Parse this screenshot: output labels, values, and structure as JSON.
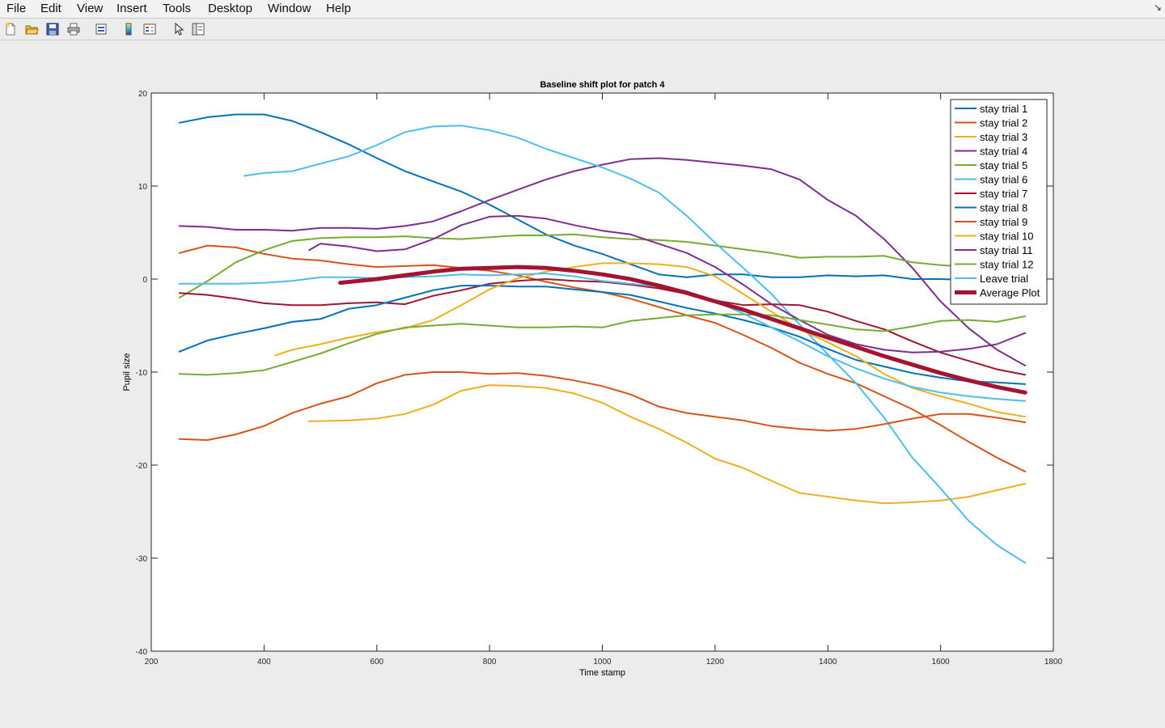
{
  "menubar": {
    "items": [
      "File",
      "Edit",
      "View",
      "Insert",
      "Tools",
      "Desktop",
      "Window",
      "Help"
    ]
  },
  "toolbar": {
    "icons": [
      "new-figure-icon",
      "open-file-icon",
      "save-icon",
      "print-icon",
      "print-preview-icon",
      "colorbar-icon",
      "legend-icon",
      "pointer-icon",
      "property-inspector-icon"
    ]
  },
  "chart_data": {
    "type": "line",
    "title": "Baseline shift plot for patch 4",
    "xlabel": "Time stamp",
    "ylabel": "Pupil size",
    "xlim": [
      200,
      1800
    ],
    "ylim": [
      -40,
      20
    ],
    "xticks": [
      200,
      400,
      600,
      800,
      1000,
      1200,
      1400,
      1600,
      1800
    ],
    "yticks": [
      -40,
      -30,
      -20,
      -10,
      0,
      10,
      20
    ],
    "grid": false,
    "legend_position": "top-right",
    "series": [
      {
        "name": "stay trial 1",
        "color": "#0072BD",
        "width": 2,
        "x": [
          250,
          300,
          350,
          400,
          450,
          500,
          550,
          600,
          650,
          700,
          750,
          800,
          850,
          900,
          950,
          1000,
          1050,
          1100,
          1150,
          1200,
          1250,
          1300,
          1350,
          1400,
          1450,
          1500,
          1550,
          1600,
          1650,
          1700,
          1750
        ],
        "y": [
          16.8,
          17.4,
          17.7,
          17.7,
          17.0,
          15.8,
          14.5,
          13.0,
          11.6,
          10.5,
          9.4,
          8.0,
          6.4,
          4.8,
          3.6,
          2.7,
          1.6,
          0.5,
          0.2,
          0.5,
          0.5,
          0.2,
          0.2,
          0.4,
          0.3,
          0.4,
          0.0,
          0.0,
          -0.1,
          0.1,
          0.4
        ]
      },
      {
        "name": "stay trial 2",
        "color": "#D95319",
        "width": 2,
        "x": [
          250,
          300,
          350,
          400,
          450,
          500,
          550,
          600,
          650,
          700,
          750,
          800,
          850,
          900,
          950,
          1000,
          1050,
          1100,
          1150,
          1200,
          1250,
          1300,
          1350,
          1400,
          1450,
          1500,
          1550,
          1600,
          1650,
          1700,
          1750
        ],
        "y": [
          2.8,
          3.6,
          3.4,
          2.7,
          2.2,
          2.0,
          1.6,
          1.3,
          1.4,
          1.5,
          1.2,
          0.9,
          0.4,
          -0.3,
          -0.9,
          -1.4,
          -2.1,
          -3.0,
          -3.9,
          -4.7,
          -6.0,
          -7.4,
          -9.0,
          -10.2,
          -11.2,
          -12.6,
          -14.0,
          -15.7,
          -17.5,
          -19.2,
          -20.7
        ]
      },
      {
        "name": "stay trial 3",
        "color": "#EDB120",
        "width": 2,
        "x": [
          480,
          550,
          600,
          650,
          700,
          750,
          800,
          850,
          900,
          950,
          1000,
          1050,
          1100,
          1150,
          1200,
          1250,
          1300,
          1350,
          1400,
          1450,
          1500,
          1550,
          1600,
          1650,
          1700,
          1750
        ],
        "y": [
          -15.3,
          -15.2,
          -15.0,
          -14.5,
          -13.5,
          -12.0,
          -11.4,
          -11.5,
          -11.7,
          -12.3,
          -13.3,
          -14.8,
          -16.1,
          -17.6,
          -19.3,
          -20.3,
          -21.7,
          -23.0,
          -23.4,
          -23.8,
          -24.1,
          -24.0,
          -23.8,
          -23.4,
          -22.7,
          -22.0
        ]
      },
      {
        "name": "stay trial 4",
        "color": "#7E2F8E",
        "width": 2,
        "x": [
          250,
          300,
          350,
          400,
          450,
          500,
          550,
          600,
          650,
          700,
          750,
          800,
          850,
          900,
          950,
          1000,
          1050,
          1100,
          1150,
          1200,
          1250,
          1300,
          1350,
          1400,
          1450,
          1500,
          1550,
          1600,
          1650,
          1700,
          1750
        ],
        "y": [
          5.7,
          5.6,
          5.3,
          5.3,
          5.2,
          5.5,
          5.5,
          5.4,
          5.7,
          6.2,
          7.3,
          8.5,
          9.6,
          10.7,
          11.6,
          12.3,
          12.9,
          13.0,
          12.8,
          12.5,
          12.2,
          11.8,
          10.7,
          8.5,
          6.8,
          4.3,
          1.2,
          -2.4,
          -5.3,
          -7.6,
          -9.3
        ]
      },
      {
        "name": "stay trial 5",
        "color": "#77AC30",
        "width": 2,
        "x": [
          250,
          300,
          350,
          400,
          450,
          500,
          550,
          600,
          650,
          700,
          750,
          800,
          850,
          900,
          950,
          1000,
          1050,
          1100,
          1150,
          1200,
          1250,
          1300,
          1350,
          1400,
          1450,
          1500,
          1550,
          1600,
          1650,
          1700,
          1750
        ],
        "y": [
          -2.0,
          -0.2,
          1.8,
          3.1,
          4.1,
          4.4,
          4.5,
          4.5,
          4.6,
          4.4,
          4.3,
          4.5,
          4.7,
          4.7,
          4.8,
          4.5,
          4.3,
          4.2,
          4.0,
          3.6,
          3.2,
          2.8,
          2.3,
          2.4,
          2.4,
          2.5,
          1.8,
          1.5,
          1.3,
          1.2,
          1.5
        ]
      },
      {
        "name": "stay trial 6",
        "color": "#4DBEEE",
        "width": 2,
        "x": [
          365,
          400,
          450,
          500,
          550,
          600,
          650,
          700,
          750,
          800,
          850,
          900,
          950,
          1000,
          1050,
          1100,
          1150,
          1200,
          1250,
          1300,
          1350,
          1400,
          1450,
          1500,
          1550,
          1600,
          1650,
          1700,
          1750
        ],
        "y": [
          11.1,
          11.4,
          11.6,
          12.4,
          13.2,
          14.4,
          15.8,
          16.4,
          16.5,
          16.0,
          15.2,
          14.0,
          13.0,
          12.0,
          10.8,
          9.3,
          6.8,
          3.9,
          1.2,
          -1.6,
          -4.9,
          -8.1,
          -11.2,
          -14.9,
          -19.2,
          -22.5,
          -26.0,
          -28.6,
          -30.5
        ]
      },
      {
        "name": "stay trial 7",
        "color": "#A2142F",
        "width": 2,
        "x": [
          250,
          300,
          350,
          400,
          450,
          500,
          550,
          600,
          650,
          700,
          750,
          800,
          850,
          900,
          950,
          1000,
          1050,
          1100,
          1150,
          1200,
          1250,
          1300,
          1350,
          1400,
          1450,
          1500,
          1550,
          1600,
          1650,
          1700,
          1750
        ],
        "y": [
          -1.5,
          -1.7,
          -2.1,
          -2.6,
          -2.8,
          -2.8,
          -2.6,
          -2.5,
          -2.7,
          -1.8,
          -1.2,
          -0.5,
          -0.2,
          0.0,
          -0.2,
          -0.3,
          -0.6,
          -1.0,
          -1.6,
          -2.3,
          -2.8,
          -2.7,
          -2.8,
          -3.5,
          -4.5,
          -5.4,
          -6.7,
          -7.9,
          -8.8,
          -9.7,
          -10.3
        ]
      },
      {
        "name": "stay trial 8",
        "color": "#0072BD",
        "width": 2,
        "x": [
          250,
          300,
          350,
          400,
          450,
          500,
          550,
          600,
          650,
          700,
          750,
          800,
          850,
          900,
          950,
          1000,
          1050,
          1100,
          1150,
          1200,
          1250,
          1300,
          1350,
          1400,
          1450,
          1500,
          1550,
          1600,
          1650,
          1700,
          1750
        ],
        "y": [
          -7.8,
          -6.6,
          -5.9,
          -5.3,
          -4.6,
          -4.3,
          -3.2,
          -2.8,
          -2.0,
          -1.2,
          -0.7,
          -0.7,
          -0.8,
          -0.8,
          -1.1,
          -1.4,
          -1.7,
          -2.4,
          -3.1,
          -3.7,
          -4.4,
          -5.2,
          -6.2,
          -7.5,
          -8.7,
          -9.4,
          -10.1,
          -10.6,
          -11.0,
          -11.1,
          -11.3
        ]
      },
      {
        "name": "stay trial 9",
        "color": "#D95319",
        "width": 2,
        "x": [
          250,
          300,
          350,
          400,
          450,
          500,
          550,
          600,
          650,
          700,
          750,
          800,
          850,
          900,
          950,
          1000,
          1050,
          1100,
          1150,
          1200,
          1250,
          1300,
          1350,
          1400,
          1450,
          1500,
          1550,
          1600,
          1650,
          1700,
          1750
        ],
        "y": [
          -17.2,
          -17.3,
          -16.7,
          -15.8,
          -14.4,
          -13.4,
          -12.6,
          -11.2,
          -10.3,
          -10.0,
          -10.0,
          -10.2,
          -10.1,
          -10.4,
          -10.9,
          -11.5,
          -12.4,
          -13.7,
          -14.4,
          -14.8,
          -15.2,
          -15.8,
          -16.1,
          -16.3,
          -16.1,
          -15.6,
          -15.0,
          -14.5,
          -14.5,
          -14.9,
          -15.4
        ]
      },
      {
        "name": "stay trial 10",
        "color": "#EDB120",
        "width": 2,
        "x": [
          420,
          450,
          500,
          550,
          600,
          650,
          700,
          750,
          800,
          850,
          900,
          950,
          1000,
          1050,
          1100,
          1150,
          1200,
          1250,
          1300,
          1350,
          1400,
          1450,
          1500,
          1550,
          1600,
          1650,
          1700,
          1750
        ],
        "y": [
          -8.2,
          -7.6,
          -7.0,
          -6.3,
          -5.7,
          -5.3,
          -4.4,
          -2.8,
          -1.1,
          0.1,
          0.8,
          1.3,
          1.7,
          1.7,
          1.6,
          1.3,
          0.3,
          -1.6,
          -3.5,
          -5.4,
          -6.8,
          -8.3,
          -10.2,
          -11.7,
          -12.6,
          -13.4,
          -14.3,
          -14.8
        ]
      },
      {
        "name": "stay trial 11",
        "color": "#7E2F8E",
        "width": 2,
        "x": [
          480,
          500,
          550,
          600,
          650,
          700,
          750,
          800,
          850,
          900,
          950,
          1000,
          1050,
          1100,
          1150,
          1200,
          1250,
          1300,
          1350,
          1400,
          1450,
          1500,
          1550,
          1600,
          1650,
          1700,
          1750
        ],
        "y": [
          3.1,
          3.8,
          3.5,
          3.0,
          3.2,
          4.3,
          5.8,
          6.7,
          6.8,
          6.5,
          5.8,
          5.2,
          4.8,
          3.8,
          2.8,
          1.3,
          -0.6,
          -2.7,
          -4.4,
          -6.0,
          -7.0,
          -7.6,
          -7.9,
          -7.8,
          -7.5,
          -7.0,
          -5.8
        ]
      },
      {
        "name": "stay trial 12",
        "color": "#77AC30",
        "width": 2,
        "x": [
          250,
          300,
          350,
          400,
          450,
          500,
          550,
          600,
          650,
          700,
          750,
          800,
          850,
          900,
          950,
          1000,
          1050,
          1100,
          1150,
          1200,
          1250,
          1300,
          1350,
          1400,
          1450,
          1500,
          1550,
          1600,
          1650,
          1700,
          1750
        ],
        "y": [
          -10.2,
          -10.3,
          -10.1,
          -9.8,
          -8.9,
          -8.0,
          -6.9,
          -5.9,
          -5.2,
          -5.0,
          -4.8,
          -5.0,
          -5.2,
          -5.2,
          -5.1,
          -5.2,
          -4.5,
          -4.2,
          -3.9,
          -3.8,
          -3.8,
          -3.9,
          -4.4,
          -4.9,
          -5.4,
          -5.6,
          -5.1,
          -4.5,
          -4.4,
          -4.6,
          -4.0
        ]
      },
      {
        "name": "Leave trial",
        "color": "#4DBEEE",
        "width": 2,
        "x": [
          250,
          300,
          350,
          400,
          450,
          500,
          550,
          600,
          650,
          700,
          750,
          800,
          850,
          900,
          950,
          1000,
          1050,
          1100,
          1150,
          1200,
          1250,
          1300,
          1350,
          1400,
          1450,
          1500,
          1550,
          1600,
          1650,
          1700,
          1750
        ],
        "y": [
          -0.5,
          -0.5,
          -0.5,
          -0.4,
          -0.2,
          0.2,
          0.2,
          0.1,
          0.2,
          0.3,
          0.5,
          0.4,
          0.5,
          0.6,
          0.3,
          -0.2,
          -0.5,
          -0.8,
          -1.3,
          -2.4,
          -3.7,
          -5.2,
          -6.7,
          -8.3,
          -9.6,
          -10.7,
          -11.6,
          -12.2,
          -12.6,
          -12.9,
          -13.1
        ]
      },
      {
        "name": "Average Plot",
        "color": "#A2142F",
        "width": 5,
        "x": [
          535,
          600,
          650,
          700,
          750,
          800,
          850,
          900,
          950,
          1000,
          1050,
          1100,
          1150,
          1200,
          1250,
          1300,
          1350,
          1400,
          1450,
          1500,
          1550,
          1600,
          1650,
          1700,
          1750
        ],
        "y": [
          -0.4,
          0.0,
          0.4,
          0.8,
          1.1,
          1.2,
          1.3,
          1.2,
          0.9,
          0.5,
          0.0,
          -0.7,
          -1.5,
          -2.4,
          -3.3,
          -4.3,
          -5.3,
          -6.3,
          -7.3,
          -8.3,
          -9.2,
          -10.1,
          -10.9,
          -11.6,
          -12.2
        ]
      }
    ]
  }
}
